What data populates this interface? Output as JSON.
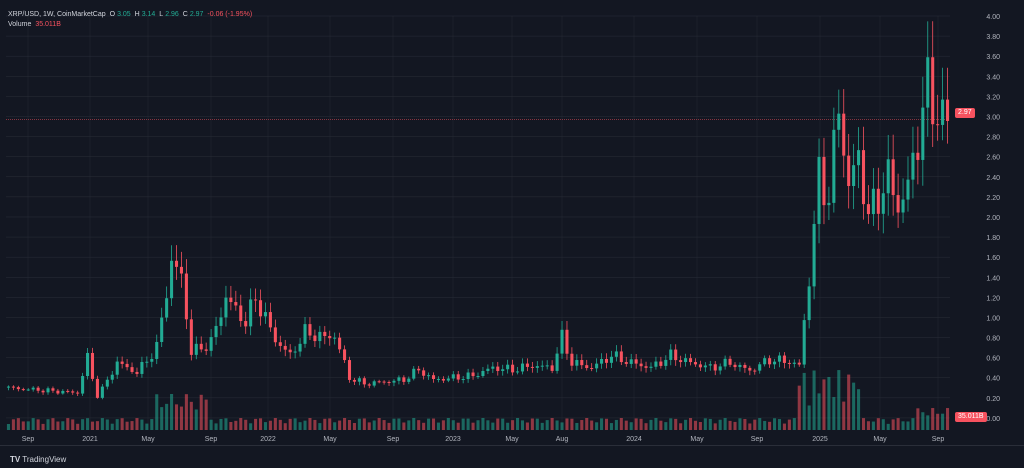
{
  "header": {
    "symbol": "XRP/USD, 1W, CoinMarketCap",
    "open_label": "O",
    "open": "3.05",
    "high_label": "H",
    "high": "3.14",
    "low_label": "L",
    "low": "2.96",
    "close_label": "C",
    "close": "2.97",
    "change": "-0.06 (-1.95%)",
    "volume_label": "Volume",
    "volume": "35.011B"
  },
  "price_badge": "2.97",
  "volume_badge": "35.011B",
  "footer": {
    "brand": "TradingView"
  },
  "colors": {
    "up": "#22ab94",
    "down": "#f7525f",
    "bg": "#131722",
    "grid": "#2a2e39",
    "text": "#b2b5be"
  },
  "chart_data": {
    "type": "candlestick",
    "timeframe": "1W",
    "ylim": [
      -0.12,
      4.0
    ],
    "y_ticks": [
      "4.00",
      "3.80",
      "3.60",
      "3.40",
      "3.20",
      "3.00",
      "2.80",
      "2.60",
      "2.40",
      "2.20",
      "2.00",
      "1.80",
      "1.60",
      "1.40",
      "1.20",
      "1.00",
      "0.80",
      "0.60",
      "0.40",
      "0.20",
      "0.00"
    ],
    "x_ticks": [
      "Sep",
      "2021",
      "May",
      "Sep",
      "2022",
      "May",
      "Sep",
      "2023",
      "May",
      "Aug",
      "2024",
      "May",
      "Sep",
      "2025",
      "May",
      "Sep"
    ],
    "anchors": [
      [
        0,
        0.3
      ],
      [
        14,
        0.25
      ],
      [
        16,
        0.6
      ],
      [
        18,
        0.2
      ],
      [
        22,
        0.55
      ],
      [
        26,
        0.45
      ],
      [
        30,
        0.7
      ],
      [
        33,
        1.55
      ],
      [
        35,
        1.4
      ],
      [
        37,
        0.65
      ],
      [
        41,
        0.75
      ],
      [
        44,
        1.2
      ],
      [
        48,
        0.95
      ],
      [
        50,
        1.2
      ],
      [
        54,
        0.78
      ],
      [
        57,
        0.62
      ],
      [
        60,
        0.85
      ],
      [
        64,
        0.8
      ],
      [
        66,
        0.82
      ],
      [
        69,
        0.4
      ],
      [
        72,
        0.34
      ],
      [
        76,
        0.36
      ],
      [
        80,
        0.38
      ],
      [
        83,
        0.48
      ],
      [
        86,
        0.38
      ],
      [
        90,
        0.4
      ],
      [
        94,
        0.42
      ],
      [
        98,
        0.5
      ],
      [
        102,
        0.48
      ],
      [
        106,
        0.52
      ],
      [
        110,
        0.5
      ],
      [
        112,
        0.8
      ],
      [
        114,
        0.55
      ],
      [
        118,
        0.5
      ],
      [
        122,
        0.62
      ],
      [
        126,
        0.55
      ],
      [
        130,
        0.5
      ],
      [
        134,
        0.62
      ],
      [
        138,
        0.55
      ],
      [
        142,
        0.5
      ],
      [
        146,
        0.55
      ],
      [
        150,
        0.47
      ],
      [
        154,
        0.58
      ],
      [
        158,
        0.56
      ],
      [
        160,
        0.52
      ],
      [
        162,
        1.4
      ],
      [
        164,
        2.4
      ],
      [
        166,
        2.2
      ],
      [
        168,
        3.1
      ],
      [
        170,
        2.3
      ],
      [
        172,
        2.6
      ],
      [
        174,
        2.0
      ],
      [
        176,
        2.2
      ],
      [
        178,
        2.4
      ],
      [
        180,
        2.1
      ],
      [
        182,
        2.3
      ],
      [
        184,
        2.8
      ],
      [
        186,
        3.3
      ],
      [
        188,
        3.0
      ],
      [
        190,
        2.97
      ]
    ],
    "total_candles": 191,
    "volume_badge": "35.011B"
  }
}
